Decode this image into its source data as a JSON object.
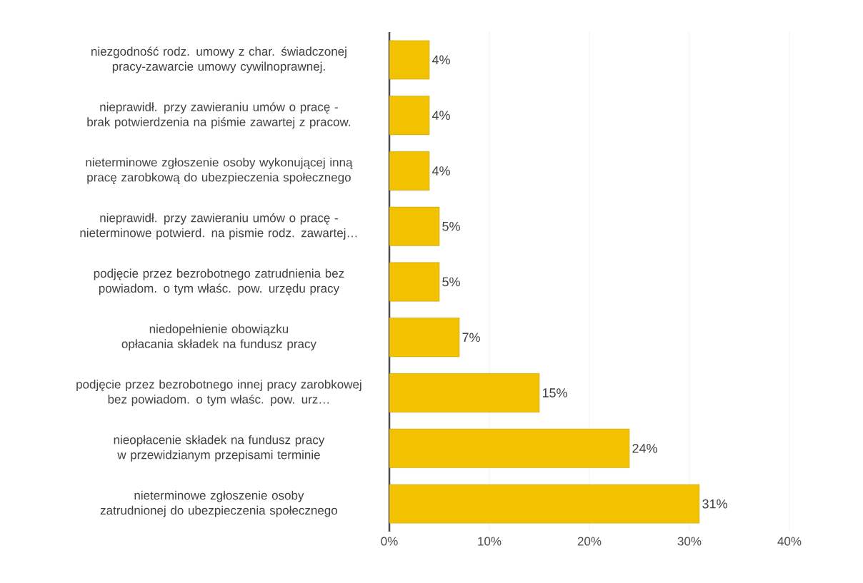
{
  "chart_data": {
    "type": "bar",
    "orientation": "horizontal",
    "categories": [
      "niezgodność rodz. umowy z char. świadczonej pracy-zawarcie umowy cywilnoprawnej.",
      "nieprawidł. przy zawieraniu umów o pracę - brak potwierdzenia na piśmie zawartej z pracow.",
      "nieterminowe zgłoszenie osoby wykonującej inną pracę zarobkową do ubezpieczenia społecznego",
      "nieprawidł. przy zawieraniu umów o pracę - nieterminowe potwierd. na pismie rodz. zawartej…",
      "podjęcie przez bezrobotnego zatrudnienia bez powiadom. o tym właśc. pow. urzędu pracy",
      "niedopełnienie obowiązku opłacania składek na fundusz pracy",
      "podjęcie przez bezrobotnego innej pracy zarobkowej bez powiadom. o tym właśc. pow. urz…",
      "nieopłacenie składek na fundusz pracy w przewidzianym przepisami terminie",
      "nieterminowe zgłoszenie osoby zatrudnionej do ubezpieczenia społecznego"
    ],
    "values": [
      4,
      4,
      4,
      5,
      5,
      7,
      15,
      24,
      31
    ],
    "value_labels": [
      "4%",
      "4%",
      "4%",
      "5%",
      "5%",
      "7%",
      "15%",
      "24%",
      "31%"
    ],
    "color": "#f2c200",
    "xlim": [
      0,
      40
    ],
    "xticks": [
      {
        "value": 0,
        "label": "0%"
      },
      {
        "value": 10,
        "label": "10%"
      },
      {
        "value": 20,
        "label": "20%"
      },
      {
        "value": 30,
        "label": "30%"
      },
      {
        "value": 40,
        "label": "40%"
      }
    ],
    "grid": "x"
  }
}
